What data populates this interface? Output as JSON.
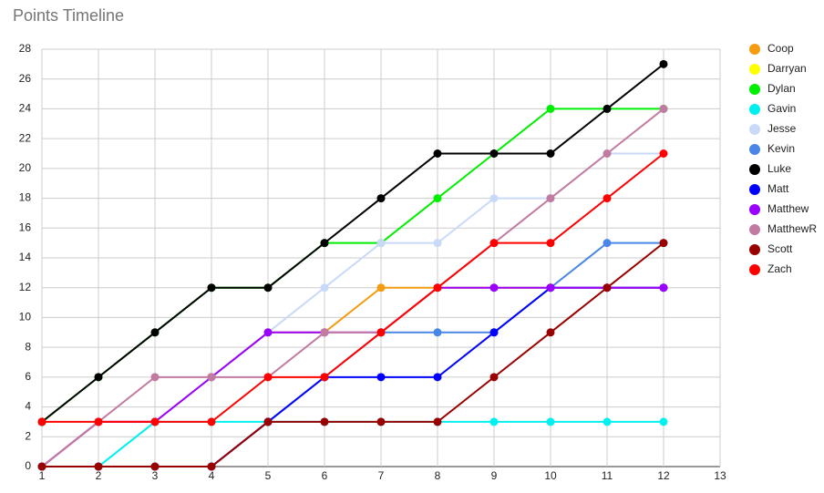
{
  "chart_data": {
    "type": "line",
    "title": "Points Timeline",
    "x": [
      1,
      2,
      3,
      4,
      5,
      6,
      7,
      8,
      9,
      10,
      11,
      12
    ],
    "xlim": [
      1,
      13
    ],
    "xticks": [
      1,
      2,
      3,
      4,
      5,
      6,
      7,
      8,
      9,
      10,
      11,
      12,
      13
    ],
    "ylim": [
      0,
      28
    ],
    "yticks": [
      0,
      2,
      4,
      6,
      8,
      10,
      12,
      14,
      16,
      18,
      20,
      22,
      24,
      26,
      28
    ],
    "grid": true,
    "legend": "right",
    "series": [
      {
        "name": "Coop",
        "color": "#f39c12",
        "values": [
          0,
          3,
          3,
          6,
          9,
          9,
          12,
          12,
          12,
          12,
          12,
          12
        ]
      },
      {
        "name": "Darryan",
        "color": "#ffff00",
        "values": [
          null,
          null,
          null,
          null,
          null,
          null,
          null,
          null,
          null,
          null,
          null,
          null
        ]
      },
      {
        "name": "Dylan",
        "color": "#00ee00",
        "values": [
          3,
          6,
          9,
          12,
          12,
          15,
          15,
          18,
          21,
          24,
          24,
          24
        ]
      },
      {
        "name": "Gavin",
        "color": "#00f0f0",
        "values": [
          0,
          0,
          3,
          3,
          3,
          3,
          3,
          3,
          3,
          3,
          3,
          3
        ]
      },
      {
        "name": "Jesse",
        "color": "#c9daf8",
        "values": [
          0,
          3,
          3,
          6,
          9,
          12,
          15,
          15,
          18,
          18,
          21,
          21
        ]
      },
      {
        "name": "Kevin",
        "color": "#4a86e8",
        "values": [
          0,
          0,
          0,
          0,
          3,
          6,
          9,
          9,
          9,
          12,
          15,
          15
        ]
      },
      {
        "name": "Luke",
        "color": "#000000",
        "values": [
          3,
          6,
          9,
          12,
          12,
          15,
          18,
          21,
          21,
          21,
          24,
          27
        ]
      },
      {
        "name": "Matt",
        "color": "#0000ff",
        "values": [
          0,
          0,
          0,
          0,
          3,
          6,
          6,
          6,
          9,
          12,
          12,
          12
        ]
      },
      {
        "name": "Matthew",
        "color": "#9900ff",
        "values": [
          0,
          3,
          3,
          6,
          9,
          9,
          9,
          12,
          12,
          12,
          12,
          12
        ]
      },
      {
        "name": "MatthewR",
        "color": "#c27ba0",
        "values": [
          0,
          3,
          6,
          6,
          6,
          9,
          9,
          12,
          15,
          18,
          21,
          24
        ]
      },
      {
        "name": "Scott",
        "color": "#990000",
        "values": [
          0,
          0,
          0,
          0,
          3,
          3,
          3,
          3,
          6,
          9,
          12,
          15
        ]
      },
      {
        "name": "Zach",
        "color": "#ff0000",
        "values": [
          3,
          3,
          3,
          3,
          6,
          6,
          9,
          12,
          15,
          15,
          18,
          21
        ]
      }
    ]
  }
}
